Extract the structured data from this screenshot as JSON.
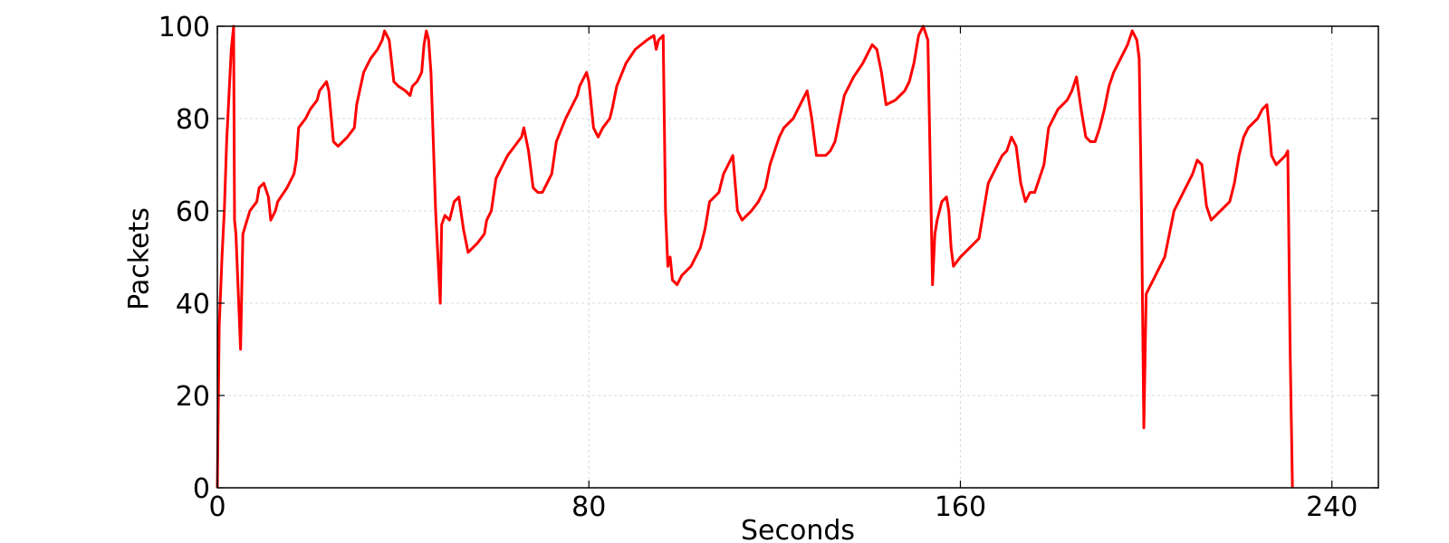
{
  "chart_data": {
    "type": "line",
    "title": "",
    "xlabel": "Seconds",
    "ylabel": "Packets",
    "xlim": [
      0,
      250
    ],
    "ylim": [
      0,
      100
    ],
    "xticks": [
      0,
      80,
      160,
      240
    ],
    "yticks": [
      0,
      20,
      40,
      60,
      80,
      100
    ],
    "grid": true,
    "line_color": "#ff0000",
    "series": [
      {
        "points": [
          [
            0,
            0
          ],
          [
            0.4,
            35
          ],
          [
            1,
            50
          ],
          [
            1.5,
            60
          ],
          [
            2,
            75
          ],
          [
            2.5,
            85
          ],
          [
            3,
            95
          ],
          [
            3.5,
            100
          ],
          [
            3.7,
            58
          ],
          [
            4,
            55
          ],
          [
            5,
            30
          ],
          [
            5.5,
            55
          ],
          [
            7,
            60
          ],
          [
            8.5,
            62
          ],
          [
            9,
            65
          ],
          [
            10,
            66
          ],
          [
            11,
            63
          ],
          [
            11.5,
            58
          ],
          [
            12.5,
            60
          ],
          [
            13,
            62
          ],
          [
            15,
            65
          ],
          [
            16.5,
            68
          ],
          [
            17,
            71
          ],
          [
            17.5,
            78
          ],
          [
            19,
            80
          ],
          [
            20,
            82
          ],
          [
            21.5,
            84
          ],
          [
            22,
            86
          ],
          [
            23.5,
            88
          ],
          [
            24,
            86
          ],
          [
            25,
            75
          ],
          [
            26,
            74
          ],
          [
            28,
            76
          ],
          [
            29.5,
            78
          ],
          [
            30,
            83
          ],
          [
            31.5,
            90
          ],
          [
            33,
            93
          ],
          [
            34.5,
            95
          ],
          [
            35.5,
            97
          ],
          [
            36,
            99
          ],
          [
            37,
            97
          ],
          [
            38,
            88
          ],
          [
            39,
            87
          ],
          [
            40.5,
            86
          ],
          [
            41.5,
            85
          ],
          [
            42,
            87
          ],
          [
            43,
            88
          ],
          [
            44,
            90
          ],
          [
            44.5,
            96
          ],
          [
            45,
            99
          ],
          [
            45.5,
            97
          ],
          [
            46,
            90
          ],
          [
            47,
            60
          ],
          [
            48,
            40
          ],
          [
            48.3,
            57
          ],
          [
            49,
            59
          ],
          [
            50,
            58
          ],
          [
            51,
            62
          ],
          [
            52,
            63
          ],
          [
            53,
            56
          ],
          [
            54,
            51
          ],
          [
            56,
            53
          ],
          [
            57.5,
            55
          ],
          [
            58,
            58
          ],
          [
            59,
            60
          ],
          [
            60,
            67
          ],
          [
            61.5,
            70
          ],
          [
            62.5,
            72
          ],
          [
            64,
            74
          ],
          [
            65.5,
            76
          ],
          [
            66,
            78
          ],
          [
            67,
            73
          ],
          [
            68,
            65
          ],
          [
            69,
            64
          ],
          [
            70,
            64
          ],
          [
            72,
            68
          ],
          [
            73,
            75
          ],
          [
            75,
            80
          ],
          [
            76,
            82
          ],
          [
            77.5,
            85
          ],
          [
            78,
            87
          ],
          [
            79.5,
            90
          ],
          [
            80,
            88
          ],
          [
            81,
            78
          ],
          [
            82,
            76
          ],
          [
            83,
            78
          ],
          [
            84.5,
            80
          ],
          [
            85,
            82
          ],
          [
            86,
            87
          ],
          [
            88,
            92
          ],
          [
            90,
            95
          ],
          [
            92.5,
            97
          ],
          [
            94,
            98
          ],
          [
            94.5,
            95
          ],
          [
            95,
            97
          ],
          [
            96,
            98
          ],
          [
            96.5,
            60
          ],
          [
            97,
            48
          ],
          [
            97.5,
            50
          ],
          [
            98,
            45
          ],
          [
            99,
            44
          ],
          [
            100,
            46
          ],
          [
            102,
            48
          ],
          [
            103,
            50
          ],
          [
            104,
            52
          ],
          [
            105,
            56
          ],
          [
            106,
            62
          ],
          [
            107,
            63
          ],
          [
            108,
            64
          ],
          [
            109,
            68
          ],
          [
            110,
            70
          ],
          [
            111,
            72
          ],
          [
            112,
            60
          ],
          [
            113,
            58
          ],
          [
            115,
            60
          ],
          [
            116.5,
            62
          ],
          [
            118,
            65
          ],
          [
            119,
            70
          ],
          [
            120,
            73
          ],
          [
            121,
            76
          ],
          [
            122,
            78
          ],
          [
            124,
            80
          ],
          [
            125,
            82
          ],
          [
            126,
            84
          ],
          [
            127,
            86
          ],
          [
            128,
            80
          ],
          [
            129,
            72
          ],
          [
            131,
            72
          ],
          [
            132,
            73
          ],
          [
            133,
            75
          ],
          [
            134,
            80
          ],
          [
            135,
            85
          ],
          [
            137,
            89
          ],
          [
            139,
            92
          ],
          [
            140,
            94
          ],
          [
            141,
            96
          ],
          [
            142,
            95
          ],
          [
            143,
            90
          ],
          [
            144,
            83
          ],
          [
            146,
            84
          ],
          [
            147,
            85
          ],
          [
            148,
            86
          ],
          [
            149,
            88
          ],
          [
            150,
            92
          ],
          [
            151,
            98
          ],
          [
            152,
            100
          ],
          [
            153,
            97
          ],
          [
            154,
            44
          ],
          [
            154.5,
            55
          ],
          [
            155,
            58
          ],
          [
            156,
            62
          ],
          [
            157,
            63
          ],
          [
            157.5,
            60
          ],
          [
            158,
            52
          ],
          [
            158.5,
            48
          ],
          [
            160,
            50
          ],
          [
            161,
            51
          ],
          [
            162,
            52
          ],
          [
            164,
            54
          ],
          [
            165,
            60
          ],
          [
            166,
            66
          ],
          [
            167,
            68
          ],
          [
            168,
            70
          ],
          [
            169,
            72
          ],
          [
            170,
            73
          ],
          [
            171,
            76
          ],
          [
            172,
            74
          ],
          [
            173,
            66
          ],
          [
            174,
            62
          ],
          [
            175,
            64
          ],
          [
            176,
            64
          ],
          [
            177,
            67
          ],
          [
            178,
            70
          ],
          [
            179,
            78
          ],
          [
            180,
            80
          ],
          [
            181,
            82
          ],
          [
            182,
            83
          ],
          [
            183,
            84
          ],
          [
            184,
            86
          ],
          [
            185,
            89
          ],
          [
            186,
            82
          ],
          [
            187,
            76
          ],
          [
            188,
            75
          ],
          [
            189,
            75
          ],
          [
            190,
            78
          ],
          [
            191,
            82
          ],
          [
            192,
            87
          ],
          [
            193,
            90
          ],
          [
            194,
            92
          ],
          [
            195,
            94
          ],
          [
            196,
            96
          ],
          [
            197,
            99
          ],
          [
            198,
            97
          ],
          [
            198.5,
            93
          ],
          [
            199,
            60
          ],
          [
            199.5,
            13
          ],
          [
            200,
            42
          ],
          [
            201,
            44
          ],
          [
            202,
            46
          ],
          [
            203,
            48
          ],
          [
            204,
            50
          ],
          [
            205,
            55
          ],
          [
            206,
            60
          ],
          [
            207,
            62
          ],
          [
            208,
            64
          ],
          [
            209,
            66
          ],
          [
            210,
            68
          ],
          [
            211,
            71
          ],
          [
            212,
            70
          ],
          [
            213,
            61
          ],
          [
            214,
            58
          ],
          [
            216,
            60
          ],
          [
            218,
            62
          ],
          [
            219,
            66
          ],
          [
            220,
            72
          ],
          [
            221,
            76
          ],
          [
            222,
            78
          ],
          [
            223,
            79
          ],
          [
            224,
            80
          ],
          [
            225,
            82
          ],
          [
            226,
            83
          ],
          [
            226.5,
            78
          ],
          [
            227,
            72
          ],
          [
            228,
            70
          ],
          [
            229,
            71
          ],
          [
            230,
            72
          ],
          [
            230.5,
            73
          ],
          [
            231,
            30
          ],
          [
            231.5,
            0
          ]
        ]
      }
    ]
  }
}
